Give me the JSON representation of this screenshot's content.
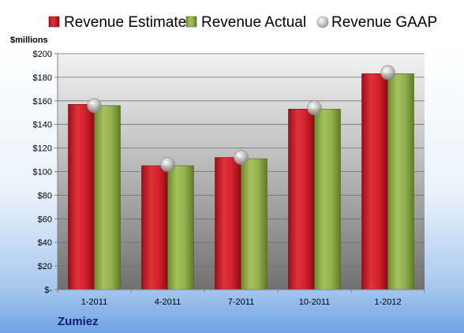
{
  "chart_data": {
    "type": "bar",
    "company": "Zumiez",
    "unit_label": "$millions",
    "categories": [
      "1-2011",
      "4-2011",
      "7-2011",
      "10-2011",
      "1-2012"
    ],
    "series": [
      {
        "name": "Revenue Estimate",
        "kind": "bar",
        "color": "#cc1f2b",
        "values": [
          157,
          105,
          112,
          153,
          183
        ]
      },
      {
        "name": "Revenue Actual",
        "kind": "bar",
        "color": "#8fae4a",
        "values": [
          156,
          105,
          111,
          153,
          183
        ]
      },
      {
        "name": "Revenue GAAP",
        "kind": "marker",
        "color": "#b8b8b8",
        "values": [
          156,
          106,
          112,
          154,
          184
        ]
      }
    ],
    "yticks": [
      "$-",
      "$20",
      "$40",
      "$60",
      "$80",
      "$100",
      "$120",
      "$140",
      "$160",
      "$180",
      "$200"
    ],
    "ylim": [
      0,
      200
    ],
    "grid": true,
    "legend_position": "top"
  }
}
